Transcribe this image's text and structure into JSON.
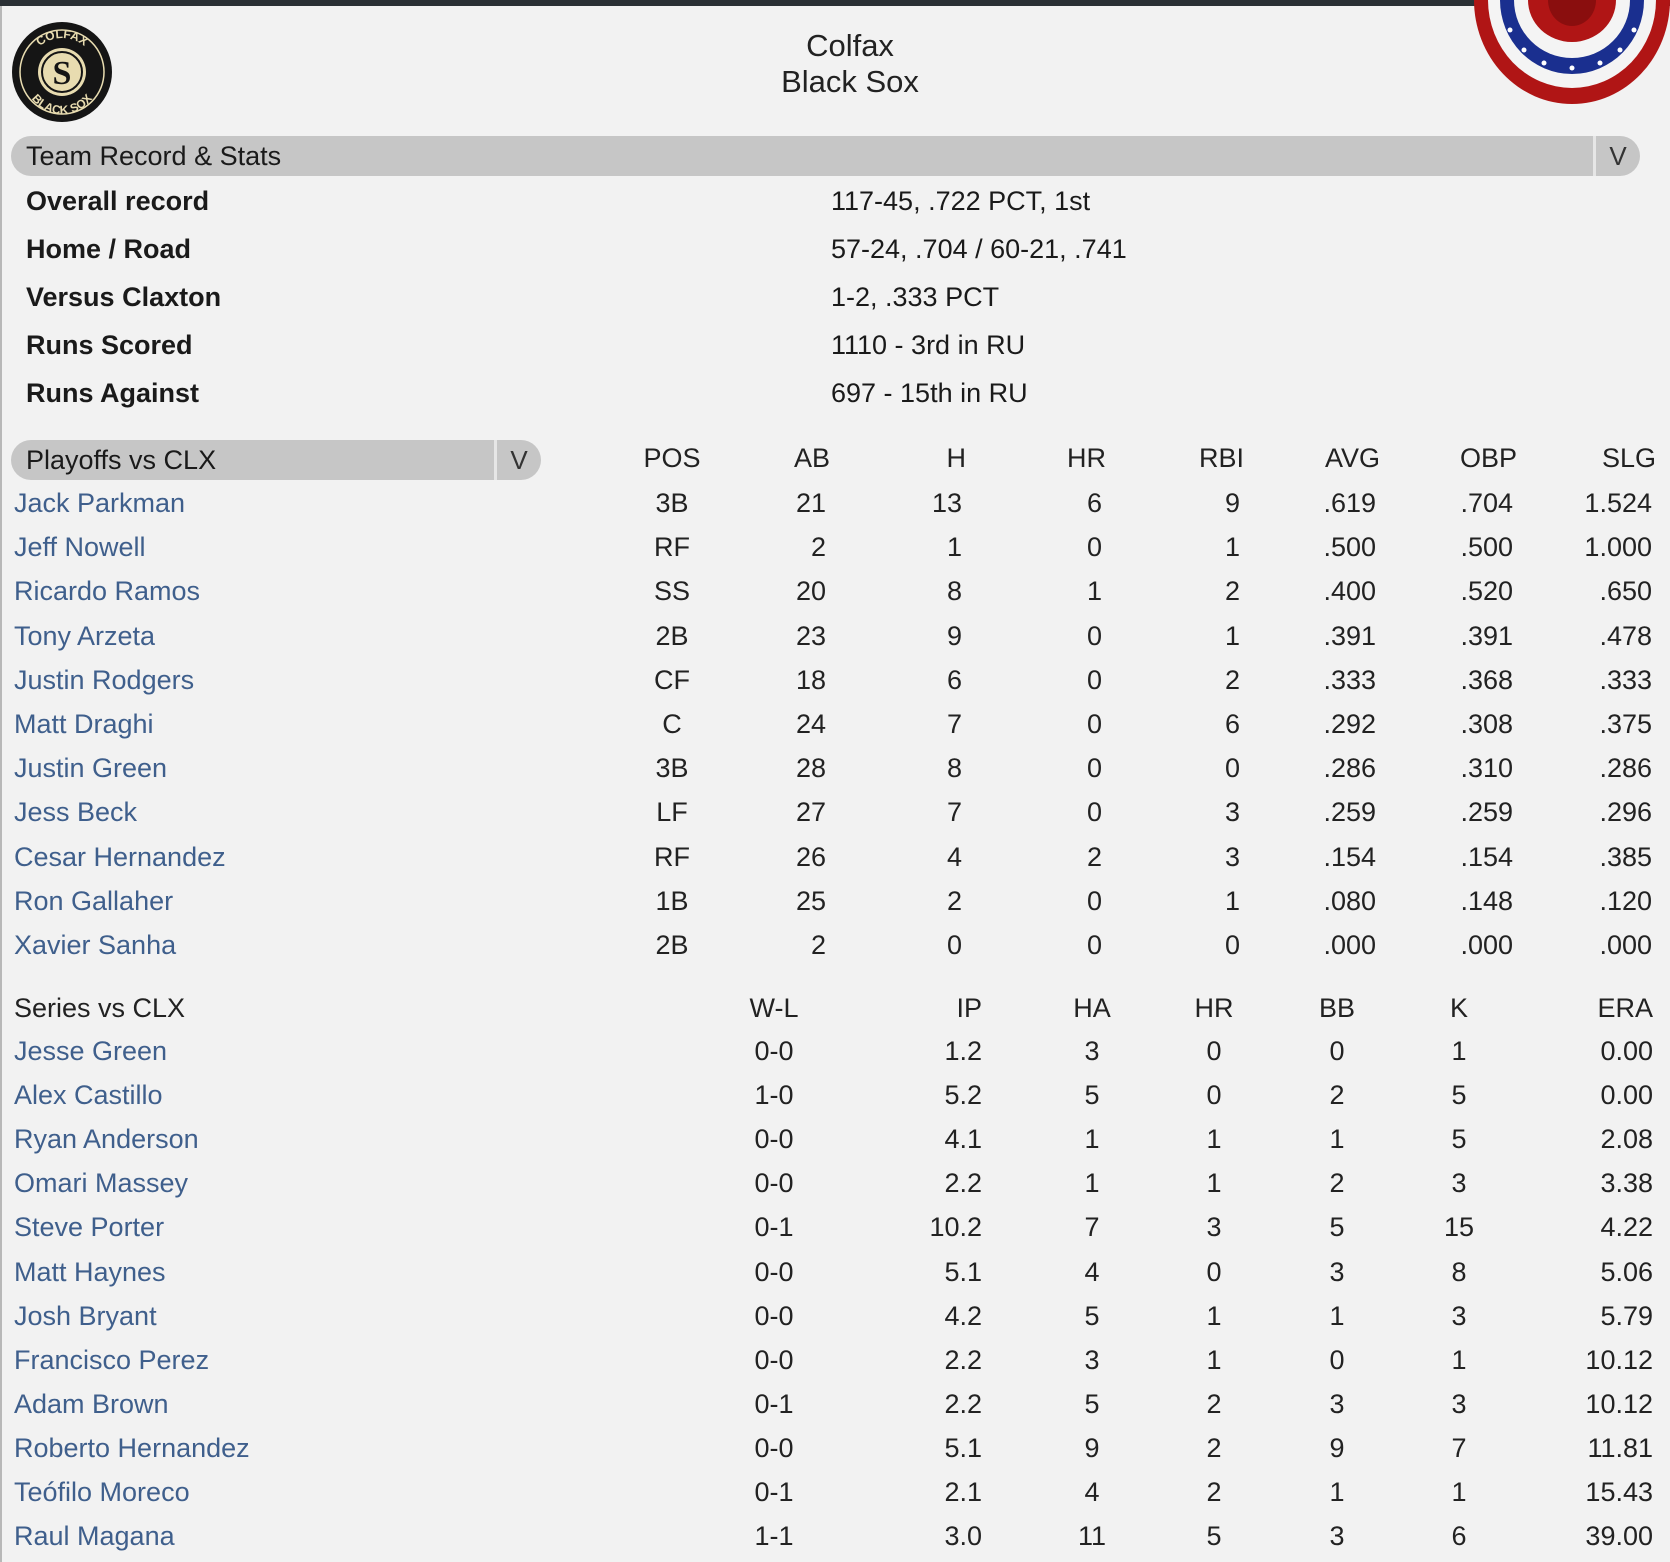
{
  "team": {
    "city": "Colfax",
    "name": "Black Sox",
    "logo_text": "COLFAX BLACK SOX"
  },
  "colors": {
    "link": "#3f5f8c",
    "bar": "#c6c6c6",
    "bunting_red": "#b01515",
    "bunting_blue": "#1a2f8f"
  },
  "record_section": {
    "title": "Team Record & Stats",
    "dropdown_icon": "chevron-down-icon",
    "rows": [
      {
        "label": "Overall record",
        "value": "117-45, .722 PCT, 1st"
      },
      {
        "label": "Home / Road",
        "value": "57-24, .704 / 60-21, .741"
      },
      {
        "label": "Versus Claxton",
        "value": "1-2, .333 PCT"
      },
      {
        "label": "Runs Scored",
        "value": "1110 - 3rd in RU"
      },
      {
        "label": "Runs Against",
        "value": "697 - 15th in RU"
      }
    ]
  },
  "batting": {
    "selector": "Playoffs vs CLX",
    "columns": [
      "POS",
      "AB",
      "H",
      "HR",
      "RBI",
      "AVG",
      "OBP",
      "SLG"
    ],
    "rows": [
      {
        "name": "Jack Parkman",
        "stats": [
          "3B",
          "21",
          "13",
          "6",
          "9",
          ".619",
          ".704",
          "1.524"
        ]
      },
      {
        "name": "Jeff Nowell",
        "stats": [
          "RF",
          "2",
          "1",
          "0",
          "1",
          ".500",
          ".500",
          "1.000"
        ]
      },
      {
        "name": "Ricardo Ramos",
        "stats": [
          "SS",
          "20",
          "8",
          "1",
          "2",
          ".400",
          ".520",
          ".650"
        ]
      },
      {
        "name": "Tony Arzeta",
        "stats": [
          "2B",
          "23",
          "9",
          "0",
          "1",
          ".391",
          ".391",
          ".478"
        ]
      },
      {
        "name": "Justin Rodgers",
        "stats": [
          "CF",
          "18",
          "6",
          "0",
          "2",
          ".333",
          ".368",
          ".333"
        ]
      },
      {
        "name": "Matt Draghi",
        "stats": [
          "C",
          "24",
          "7",
          "0",
          "6",
          ".292",
          ".308",
          ".375"
        ]
      },
      {
        "name": "Justin Green",
        "stats": [
          "3B",
          "28",
          "8",
          "0",
          "0",
          ".286",
          ".310",
          ".286"
        ]
      },
      {
        "name": "Jess Beck",
        "stats": [
          "LF",
          "27",
          "7",
          "0",
          "3",
          ".259",
          ".259",
          ".296"
        ]
      },
      {
        "name": "Cesar Hernandez",
        "stats": [
          "RF",
          "26",
          "4",
          "2",
          "3",
          ".154",
          ".154",
          ".385"
        ]
      },
      {
        "name": "Ron Gallaher",
        "stats": [
          "1B",
          "25",
          "2",
          "0",
          "1",
          ".080",
          ".148",
          ".120"
        ]
      },
      {
        "name": "Xavier Sanha",
        "stats": [
          "2B",
          "2",
          "0",
          "0",
          "0",
          ".000",
          ".000",
          ".000"
        ]
      }
    ]
  },
  "pitching": {
    "title": "Series vs CLX",
    "columns": [
      "W-L",
      "IP",
      "HA",
      "HR",
      "BB",
      "K",
      "ERA"
    ],
    "rows": [
      {
        "name": "Jesse Green",
        "stats": [
          "0-0",
          "1.2",
          "3",
          "0",
          "0",
          "1",
          "0.00"
        ]
      },
      {
        "name": "Alex Castillo",
        "stats": [
          "1-0",
          "5.2",
          "5",
          "0",
          "2",
          "5",
          "0.00"
        ]
      },
      {
        "name": "Ryan Anderson",
        "stats": [
          "0-0",
          "4.1",
          "1",
          "1",
          "1",
          "5",
          "2.08"
        ]
      },
      {
        "name": "Omari Massey",
        "stats": [
          "0-0",
          "2.2",
          "1",
          "1",
          "2",
          "3",
          "3.38"
        ]
      },
      {
        "name": "Steve Porter",
        "stats": [
          "0-1",
          "10.2",
          "7",
          "3",
          "5",
          "15",
          "4.22"
        ]
      },
      {
        "name": "Matt Haynes",
        "stats": [
          "0-0",
          "5.1",
          "4",
          "0",
          "3",
          "8",
          "5.06"
        ]
      },
      {
        "name": "Josh Bryant",
        "stats": [
          "0-0",
          "4.2",
          "5",
          "1",
          "1",
          "3",
          "5.79"
        ]
      },
      {
        "name": "Francisco Perez",
        "stats": [
          "0-0",
          "2.2",
          "3",
          "1",
          "0",
          "1",
          "10.12"
        ]
      },
      {
        "name": "Adam Brown",
        "stats": [
          "0-1",
          "2.2",
          "5",
          "2",
          "3",
          "3",
          "10.12"
        ]
      },
      {
        "name": "Roberto Hernandez",
        "stats": [
          "0-0",
          "5.1",
          "9",
          "2",
          "9",
          "7",
          "11.81"
        ]
      },
      {
        "name": "Teófilo Moreco",
        "stats": [
          "0-1",
          "2.1",
          "4",
          "2",
          "1",
          "1",
          "15.43"
        ]
      },
      {
        "name": "Raul Magana",
        "stats": [
          "1-1",
          "3.0",
          "11",
          "5",
          "3",
          "6",
          "39.00"
        ]
      }
    ]
  }
}
